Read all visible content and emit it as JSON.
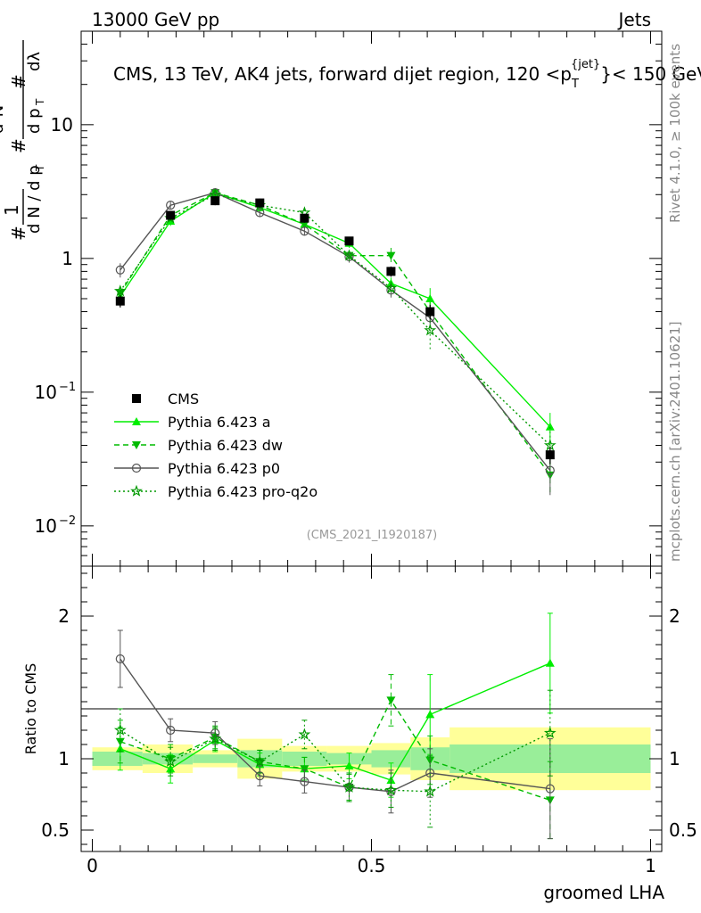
{
  "header": {
    "left": "13000 GeV pp",
    "right": "Jets",
    "rivet_label": "Rivet 4.1.0, ≥ 100k events",
    "site_label": "mcplots.cern.ch [arXiv:2401.10621]",
    "analysis_tag": "(CMS_2021_I1920187)"
  },
  "chart_data": {
    "type": "line",
    "title": "CMS, 13 TeV, AK4 jets, forward dijet region, 120 < p_T^{jet} < 150 GeV",
    "title_parts": {
      "prefix": "CMS, 13 TeV, AK4 jets, forward dijet region, 120 <p",
      "sub": "T",
      "sup": "{jet}",
      "suffix": "}< 150 GeV"
    },
    "xlabel": "groomed LHA",
    "ylabel_main": "1/dN/dp_T  d²N/dp_T dλ",
    "ylabel_ratio": "Ratio to CMS",
    "xlim": [
      -0.02,
      1.02
    ],
    "ylim_main_log": [
      0.005,
      50
    ],
    "ylim_ratio": [
      0.35,
      2.35
    ],
    "x_ticks": [
      "0",
      "0.5",
      "1"
    ],
    "y_ticks_main": [
      "10⁻²",
      "10⁻¹",
      "1",
      "10"
    ],
    "y_ticks_ratio": [
      "0.5",
      "1",
      "2"
    ],
    "legend": [
      "CMS",
      "Pythia 6.423 a",
      "Pythia 6.423 dw",
      "Pythia 6.423 p0",
      "Pythia 6.423 pro-q2o"
    ],
    "bin_edges": [
      0,
      0.09,
      0.18,
      0.26,
      0.34,
      0.42,
      0.5,
      0.57,
      0.64,
      1.0
    ],
    "x": [
      0.05,
      0.14,
      0.22,
      0.3,
      0.38,
      0.46,
      0.535,
      0.605,
      0.82
    ],
    "data": {
      "name": "CMS",
      "values": [
        0.48,
        2.1,
        2.7,
        2.6,
        2.0,
        1.35,
        0.8,
        0.4,
        0.034
      ],
      "errors": [
        0.05,
        0.15,
        0.2,
        0.2,
        0.15,
        0.1,
        0.07,
        0.05,
        0.005
      ],
      "band_stat": [
        0.05,
        0.04,
        0.03,
        0.06,
        0.05,
        0.04,
        0.06,
        0.08,
        0.1
      ],
      "band_total": [
        0.08,
        0.1,
        0.06,
        0.14,
        0.09,
        0.09,
        0.11,
        0.15,
        0.22
      ]
    },
    "series": [
      {
        "name": "Pythia 6.423 a",
        "color": "#00ee00",
        "dash": "",
        "marker": "triangle-up",
        "values": [
          0.52,
          1.9,
          3.1,
          2.4,
          1.8,
          1.3,
          0.65,
          0.5,
          0.055
        ],
        "errors": [
          0.05,
          0.15,
          0.2,
          0.15,
          0.12,
          0.1,
          0.07,
          0.1,
          0.015
        ],
        "ratio": [
          1.07,
          0.93,
          1.13,
          0.96,
          0.93,
          0.95,
          0.85,
          1.31,
          1.67
        ],
        "ratio_err": [
          0.15,
          0.1,
          0.08,
          0.08,
          0.08,
          0.09,
          0.12,
          0.28,
          0.35
        ]
      },
      {
        "name": "Pythia 6.423 dw",
        "color": "#00bb00",
        "dash": "6,4",
        "marker": "triangle-down",
        "values": [
          0.55,
          2.1,
          3.1,
          2.5,
          1.8,
          1.05,
          1.05,
          0.4,
          0.024
        ],
        "errors": [
          0.05,
          0.15,
          0.2,
          0.15,
          0.12,
          0.1,
          0.15,
          0.07,
          0.007
        ],
        "ratio": [
          1.12,
          1.0,
          1.15,
          0.98,
          0.93,
          0.8,
          1.41,
          0.99,
          0.71
        ],
        "ratio_err": [
          0.15,
          0.1,
          0.08,
          0.08,
          0.08,
          0.09,
          0.18,
          0.17,
          0.27
        ]
      },
      {
        "name": "Pythia 6.423 p0",
        "color": "#555555",
        "dash": "",
        "marker": "circle-open",
        "values": [
          0.82,
          2.5,
          3.1,
          2.2,
          1.6,
          1.03,
          0.58,
          0.36,
          0.026
        ],
        "errors": [
          0.1,
          0.15,
          0.2,
          0.15,
          0.12,
          0.1,
          0.07,
          0.06,
          0.009
        ],
        "ratio": [
          1.7,
          1.2,
          1.18,
          0.88,
          0.84,
          0.8,
          0.77,
          0.9,
          0.79
        ],
        "ratio_err": [
          0.2,
          0.08,
          0.08,
          0.07,
          0.08,
          0.1,
          0.15,
          0.17,
          0.35
        ]
      },
      {
        "name": "Pythia 6.423 pro-q2o",
        "color": "#009900",
        "dash": "2,3",
        "marker": "star-open",
        "values": [
          0.57,
          2.0,
          3.0,
          2.5,
          2.2,
          1.05,
          0.6,
          0.29,
          0.04
        ],
        "errors": [
          0.05,
          0.15,
          0.2,
          0.15,
          0.12,
          0.1,
          0.07,
          0.08,
          0.015
        ],
        "ratio": [
          1.2,
          0.98,
          1.14,
          0.98,
          1.17,
          0.8,
          0.78,
          0.77,
          1.18
        ],
        "ratio_err": [
          0.15,
          0.1,
          0.08,
          0.08,
          0.1,
          0.1,
          0.12,
          0.25,
          0.3
        ]
      }
    ]
  }
}
